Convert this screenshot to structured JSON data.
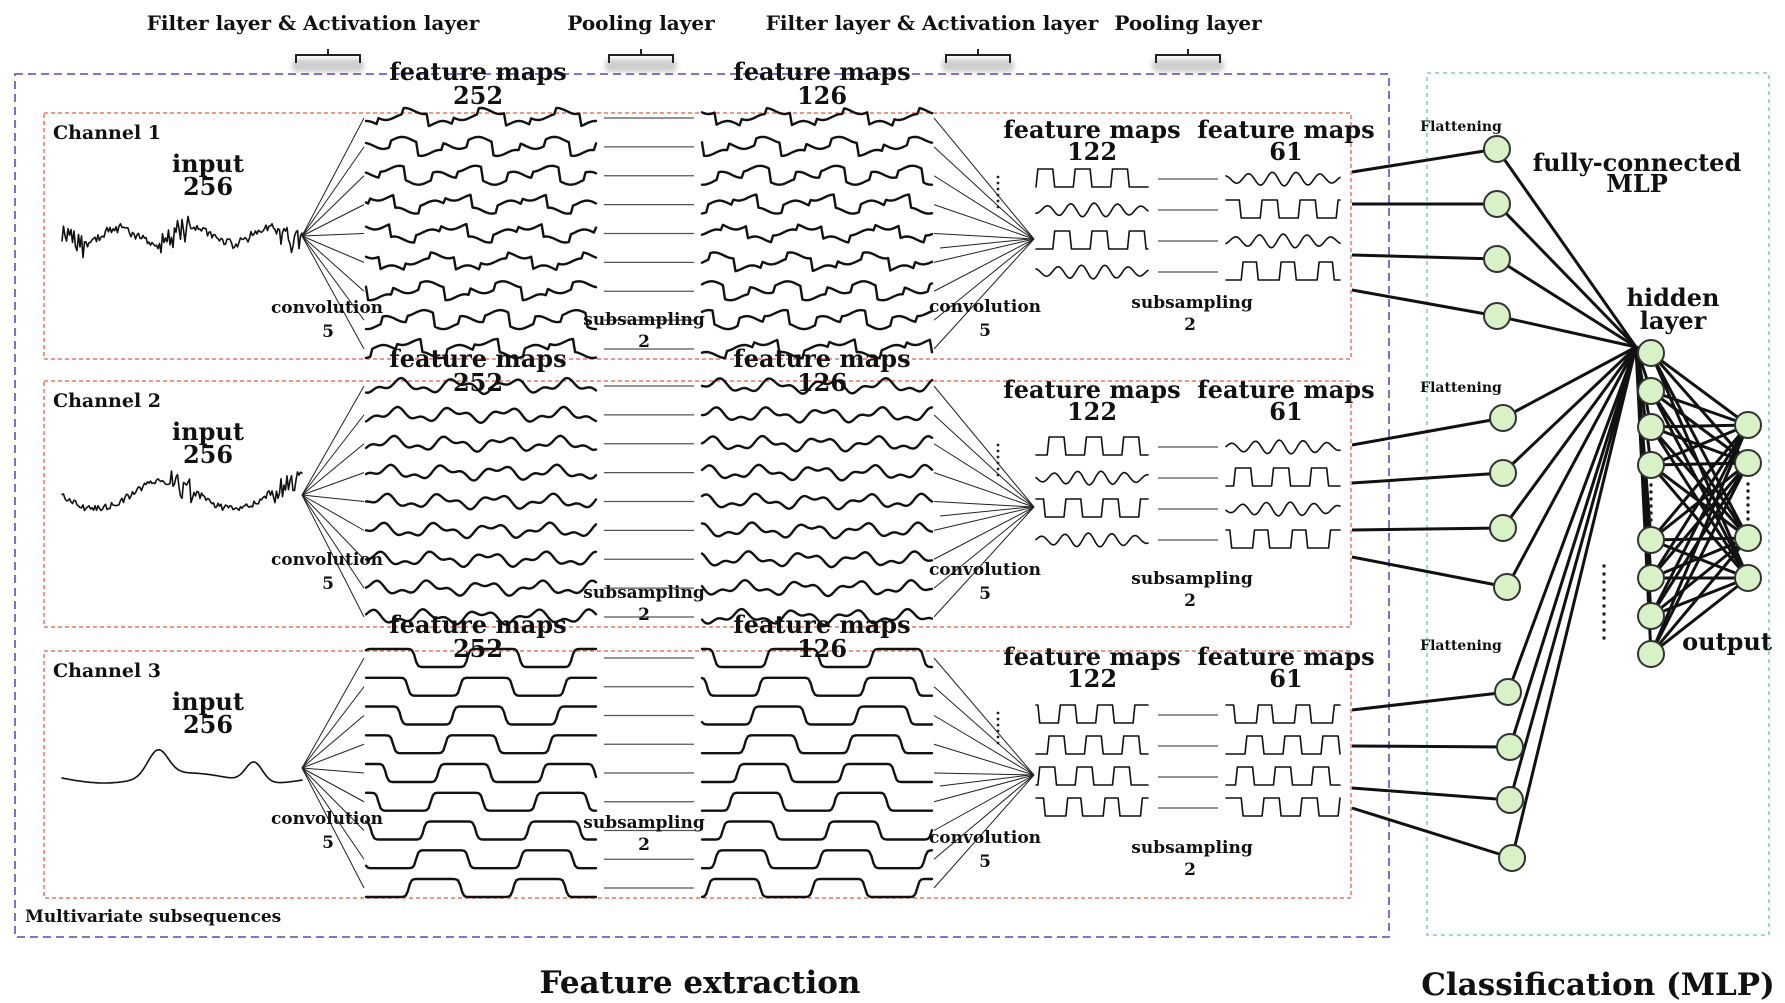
{
  "labels": {
    "filter_activation": "Filter layer & Activation layer",
    "pooling": "Pooling layer",
    "feature_maps": "feature maps",
    "input": "input",
    "input_size": "256",
    "convolution": "convolution",
    "conv_kernel": "5",
    "subsampling": "subsampling",
    "sub_factor": "2",
    "size_252": "252",
    "size_126": "126",
    "size_122": "122",
    "size_61": "61",
    "flattening": "Flattening",
    "fully_connected_1": "fully-connected",
    "fully_connected_2": "MLP",
    "hidden_1": "hidden",
    "hidden_2": "layer",
    "output": "output",
    "multivariate": "Multivariate subsequences",
    "feature_extraction": "Feature extraction",
    "classification": "Classification (MLP)"
  },
  "channels": [
    {
      "name": "Channel 1",
      "style": "spiky"
    },
    {
      "name": "Channel 2",
      "style": "wavy"
    },
    {
      "name": "Channel 3",
      "style": "square"
    }
  ],
  "colors": {
    "feature_box": "#6b63c6",
    "channel_box": "#e8775d",
    "classification_box": "#7fc8d2",
    "node_fill": "#d8f1c7"
  }
}
